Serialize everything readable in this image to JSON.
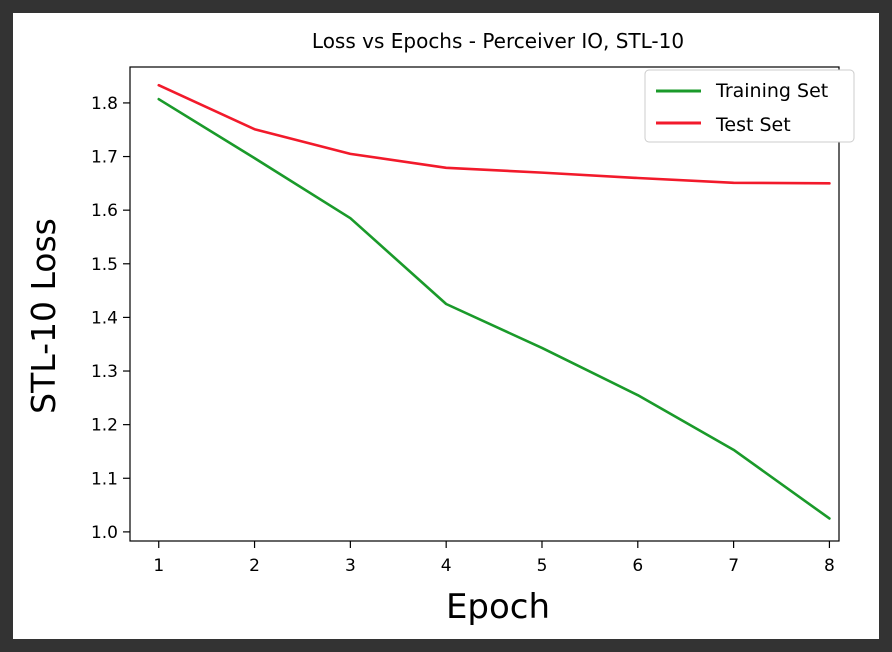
{
  "chart_data": {
    "type": "line",
    "title": "Loss vs Epochs - Perceiver IO, STL-10",
    "xlabel": "Epoch",
    "ylabel": "STL-10 Loss",
    "x": [
      1,
      2,
      3,
      4,
      5,
      6,
      7,
      8
    ],
    "xlim": [
      0.7,
      8.1
    ],
    "ylim": [
      0.983,
      1.867
    ],
    "x_ticks": [
      "1",
      "2",
      "3",
      "4",
      "5",
      "6",
      "7",
      "8"
    ],
    "y_ticks": [
      "1.0",
      "1.1",
      "1.2",
      "1.3",
      "1.4",
      "1.5",
      "1.6",
      "1.7",
      "1.8"
    ],
    "grid": false,
    "legend_position": "top-right",
    "series": [
      {
        "name": "Training Set",
        "color": "#1a9a2a",
        "values": [
          1.807,
          1.697,
          1.585,
          1.425,
          1.343,
          1.255,
          1.153,
          1.025
        ]
      },
      {
        "name": "Test Set",
        "color": "#f21a2b",
        "values": [
          1.833,
          1.751,
          1.705,
          1.679,
          1.67,
          1.66,
          1.651,
          1.65
        ]
      }
    ]
  }
}
